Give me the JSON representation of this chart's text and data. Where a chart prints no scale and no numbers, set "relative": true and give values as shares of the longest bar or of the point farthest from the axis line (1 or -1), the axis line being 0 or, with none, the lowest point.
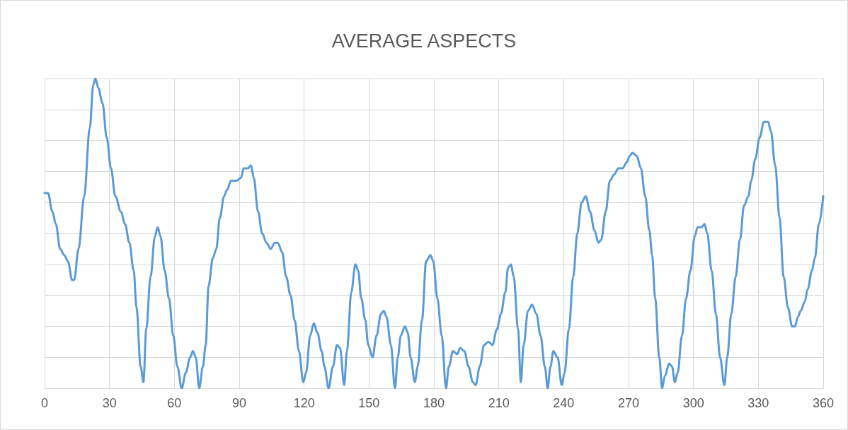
{
  "chart_data": {
    "type": "line",
    "title": "AVERAGE ASPECTS",
    "relative": true,
    "tick_labels": "x",
    "grid": true,
    "marker": "none",
    "line_style": "solid",
    "xlim": [
      0,
      360
    ],
    "xticks": [
      0,
      30,
      60,
      90,
      120,
      150,
      180,
      210,
      240,
      270,
      300,
      330,
      360
    ],
    "x": [
      0,
      1.6,
      3.6,
      5.2,
      7.2,
      9.1,
      10.8,
      12.7,
      13.7,
      15.7,
      18.3,
      20.9,
      22.5,
      23.5,
      24.8,
      26.8,
      28.7,
      30.7,
      32.7,
      35.3,
      37.2,
      39.2,
      41.2,
      42.5,
      44.4,
      45.7,
      47.0,
      49.0,
      51.0,
      52.3,
      53.6,
      55.5,
      57.5,
      59.5,
      61.4,
      63.4,
      65.3,
      67.3,
      68.6,
      69.9,
      71.5,
      73.2,
      74.5,
      75.8,
      77.8,
      79.4,
      81.0,
      83.0,
      84.3,
      86.2,
      88.9,
      90.8,
      92.1,
      94.1,
      95.4,
      96.7,
      98.7,
      100.6,
      102.6,
      104.5,
      106.5,
      107.8,
      109.8,
      111.7,
      113.7,
      115.6,
      117.6,
      119.6,
      120.9,
      122.8,
      124.5,
      126.1,
      128.1,
      129.4,
      131.3,
      133.3,
      135.2,
      136.6,
      138.5,
      139.8,
      141.8,
      143.7,
      145.0,
      146.4,
      148.3,
      149.6,
      151.6,
      153.5,
      155.5,
      156.8,
      158.1,
      160.1,
      162.0,
      163.3,
      164.7,
      166.6,
      167.9,
      169.2,
      171.2,
      172.5,
      174.5,
      176.4,
      178.4,
      179.7,
      181.6,
      183.6,
      185.6,
      186.9,
      188.8,
      190.8,
      192.1,
      194.1,
      196.0,
      198.0,
      199.3,
      201.2,
      203.2,
      205.2,
      207.1,
      209.1,
      211.0,
      213.0,
      214.3,
      215.6,
      216.9,
      218.9,
      220.2,
      221.5,
      223.5,
      225.4,
      227.4,
      229.3,
      231.3,
      232.6,
      233.9,
      235.2,
      237.2,
      239.1,
      240.4,
      242.4,
      244.4,
      246.3,
      248.3,
      250.2,
      252.2,
      254.2,
      256.1,
      257.4,
      259.4,
      261.4,
      263.3,
      265.3,
      267.2,
      269.2,
      270.5,
      271.8,
      273.8,
      275.7,
      277.7,
      279.6,
      280.9,
      282.3,
      284.2,
      285.5,
      286.8,
      288.8,
      290.1,
      291.4,
      292.7,
      294.7,
      296.6,
      298.6,
      300.6,
      301.9,
      303.8,
      305.1,
      306.4,
      308.4,
      310.4,
      312.3,
      314.3,
      315.6,
      317.5,
      319.5,
      321.5,
      323.4,
      325.4,
      326.7,
      328.6,
      330.6,
      332.6,
      334.5,
      335.8,
      337.8,
      339.8,
      341.7,
      343.7,
      345.6,
      346.9,
      348.3,
      349.6,
      351.5,
      352.8,
      354.8,
      356.1,
      358.0,
      360
    ],
    "series": [
      {
        "color": "#5b9bd5",
        "values": [
          0.63,
          0.63,
          0.57,
          0.53,
          0.45,
          0.43,
          0.41,
          0.35,
          0.35,
          0.45,
          0.62,
          0.84,
          0.98,
          1,
          0.97,
          0.92,
          0.81,
          0.71,
          0.62,
          0.57,
          0.53,
          0.47,
          0.38,
          0.26,
          0.07,
          0.02,
          0.19,
          0.36,
          0.49,
          0.52,
          0.49,
          0.38,
          0.29,
          0.17,
          0.07,
          0,
          0.05,
          0.1,
          0.12,
          0.1,
          0,
          0.07,
          0.14,
          0.33,
          0.42,
          0.45,
          0.55,
          0.62,
          0.64,
          0.67,
          0.67,
          0.68,
          0.71,
          0.71,
          0.72,
          0.68,
          0.57,
          0.5,
          0.47,
          0.45,
          0.47,
          0.47,
          0.44,
          0.36,
          0.3,
          0.22,
          0.12,
          0.02,
          0.05,
          0.17,
          0.21,
          0.18,
          0.12,
          0.07,
          0,
          0.07,
          0.14,
          0.13,
          0.01,
          0.12,
          0.31,
          0.4,
          0.38,
          0.29,
          0.22,
          0.14,
          0.1,
          0.17,
          0.24,
          0.25,
          0.23,
          0.14,
          0,
          0.1,
          0.17,
          0.2,
          0.18,
          0.1,
          0.02,
          0.07,
          0.22,
          0.41,
          0.43,
          0.41,
          0.29,
          0.17,
          0,
          0.07,
          0.12,
          0.11,
          0.13,
          0.12,
          0.07,
          0.02,
          0.01,
          0.07,
          0.14,
          0.15,
          0.14,
          0.19,
          0.24,
          0.31,
          0.39,
          0.4,
          0.36,
          0.19,
          0.02,
          0.14,
          0.25,
          0.27,
          0.24,
          0.17,
          0.07,
          0,
          0.07,
          0.12,
          0.1,
          0.01,
          0.05,
          0.19,
          0.36,
          0.5,
          0.6,
          0.62,
          0.57,
          0.51,
          0.47,
          0.48,
          0.57,
          0.67,
          0.69,
          0.71,
          0.71,
          0.73,
          0.75,
          0.76,
          0.75,
          0.71,
          0.62,
          0.51,
          0.43,
          0.29,
          0.1,
          0,
          0.04,
          0.08,
          0.07,
          0.02,
          0.05,
          0.17,
          0.29,
          0.38,
          0.49,
          0.52,
          0.52,
          0.53,
          0.5,
          0.38,
          0.24,
          0.1,
          0.01,
          0.1,
          0.24,
          0.36,
          0.48,
          0.59,
          0.62,
          0.67,
          0.74,
          0.81,
          0.86,
          0.86,
          0.83,
          0.72,
          0.55,
          0.36,
          0.26,
          0.2,
          0.2,
          0.23,
          0.25,
          0.28,
          0.32,
          0.38,
          0.42,
          0.53,
          0.62
        ]
      }
    ]
  }
}
